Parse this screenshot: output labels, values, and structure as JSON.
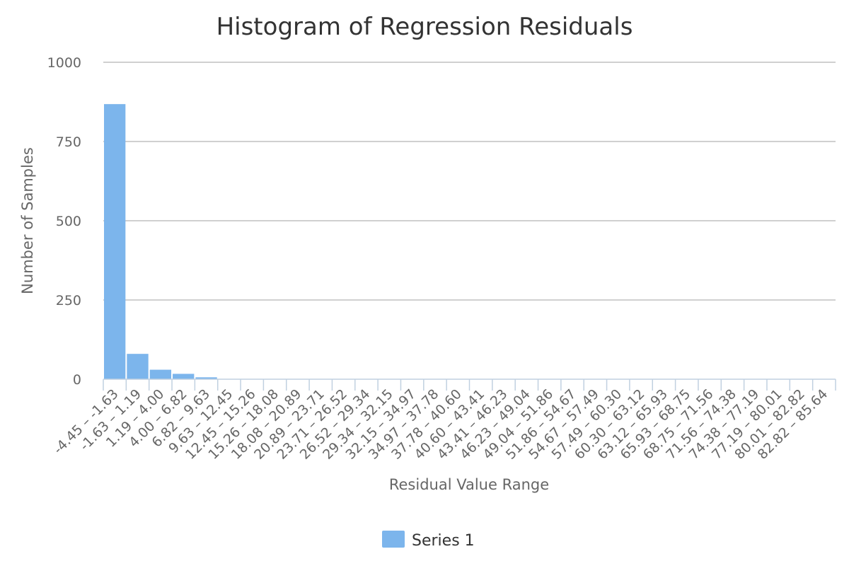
{
  "chart_data": {
    "type": "bar",
    "title": "Histogram of Regression Residuals",
    "xlabel": "Residual Value Range",
    "ylabel": "Number of Samples",
    "ylim": [
      0,
      1000
    ],
    "yticks": [
      0,
      250,
      500,
      750,
      1000
    ],
    "grid": true,
    "legend_position": "bottom-center",
    "colors": {
      "bar": "#7cb5ec",
      "grid": "#c0c0c0",
      "axis": "#c0d0e0"
    },
    "categories": [
      "-4.45 – -1.63",
      "-1.63 – 1.19",
      "1.19 – 4.00",
      "4.00 – 6.82",
      "6.82 – 9.63",
      "9.63 – 12.45",
      "12.45 – 15.26",
      "15.26 – 18.08",
      "18.08 – 20.89",
      "20.89 – 23.71",
      "23.71 – 26.52",
      "26.52 – 29.34",
      "29.34 – 32.15",
      "32.15 – 34.97",
      "34.97 – 37.78",
      "37.78 – 40.60",
      "40.60 – 43.41",
      "43.41 – 46.23",
      "46.23 – 49.04",
      "49.04 – 51.86",
      "51.86 – 54.67",
      "54.67 – 57.49",
      "57.49 – 60.30",
      "60.30 – 63.12",
      "63.12 – 65.93",
      "65.93 – 68.75",
      "68.75 – 71.56",
      "71.56 – 74.38",
      "74.38 – 77.19",
      "77.19 – 80.01",
      "80.01 – 82.82",
      "82.82 – 85.64"
    ],
    "series": [
      {
        "name": "Series 1",
        "values": [
          868,
          80,
          30,
          17,
          6,
          0,
          0,
          0,
          0,
          0,
          0,
          0,
          0,
          0,
          0,
          0,
          0,
          0,
          0,
          0,
          0,
          0,
          0,
          0,
          0,
          0,
          0,
          0,
          0,
          0,
          0,
          0
        ]
      }
    ]
  }
}
